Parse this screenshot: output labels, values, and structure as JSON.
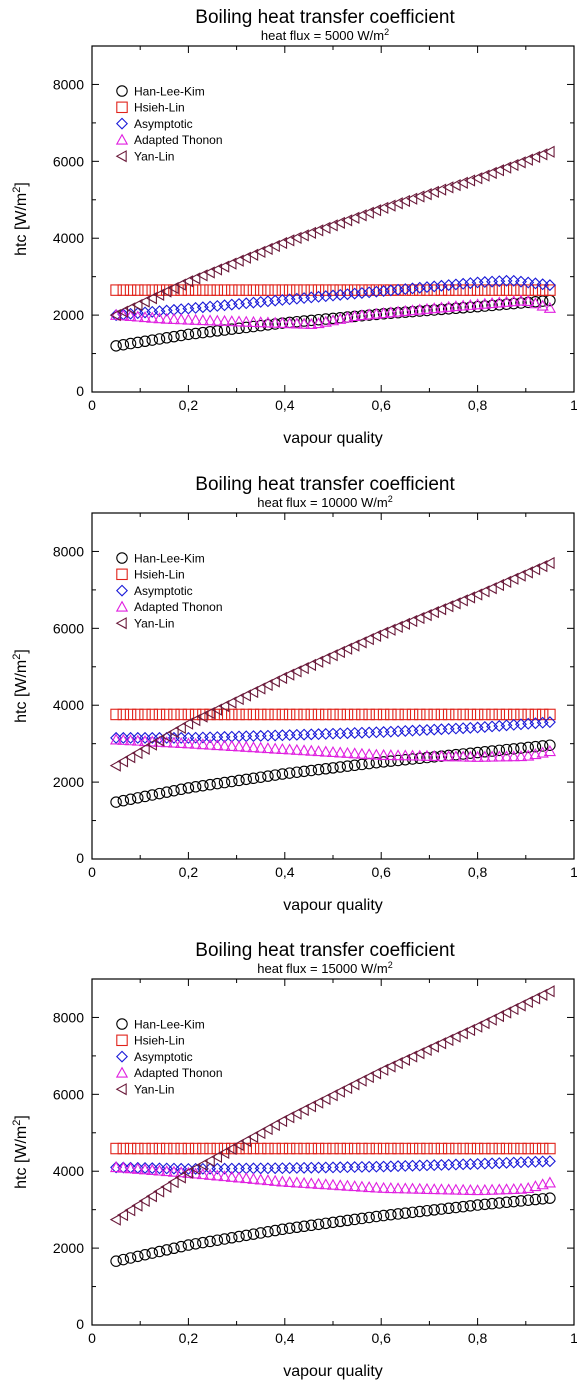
{
  "colors": {
    "Han-Lee-Kim": "#000000",
    "Hsieh-Lin": "#e0221a",
    "Asymptotic": "#1a1ad8",
    "Adapted Thonon": "#e020e0",
    "Yan-Lin": "#6a1a3a"
  },
  "chart_data": [
    {
      "type": "scatter",
      "title": "Boiling heat transfer coefficient",
      "subtitle": "heat flux = 5000 W/m",
      "subtitle_sup": "2",
      "xlabel": "vapour quality",
      "ylabel": "htc [W/m",
      "ylabel_sup": "2",
      "ylabel_end": "]",
      "xlim": [
        0,
        1
      ],
      "ylim": [
        0,
        9000
      ],
      "xticks": [
        "0",
        "0,2",
        "0,4",
        "0,6",
        "0,8",
        "1"
      ],
      "yticks": [
        "0",
        "2000",
        "4000",
        "6000",
        "8000"
      ],
      "legend_position": "top-left",
      "series": [
        {
          "name": "Han-Lee-Kim",
          "marker": "circle",
          "points": [
            [
              0.05,
              1200
            ],
            [
              0.2,
              1500
            ],
            [
              0.4,
              1800
            ],
            [
              0.6,
              2030
            ],
            [
              0.8,
              2220
            ],
            [
              0.95,
              2380
            ]
          ]
        },
        {
          "name": "Hsieh-Lin",
          "marker": "square",
          "points": [
            [
              0.05,
              2650
            ],
            [
              0.95,
              2650
            ]
          ]
        },
        {
          "name": "Asymptotic",
          "marker": "diamond",
          "points": [
            [
              0.05,
              2000
            ],
            [
              0.2,
              2170
            ],
            [
              0.4,
              2400
            ],
            [
              0.6,
              2620
            ],
            [
              0.8,
              2850
            ],
            [
              0.87,
              2900
            ],
            [
              0.95,
              2780
            ]
          ]
        },
        {
          "name": "Adapted Thonon",
          "marker": "triangle-up",
          "points": [
            [
              0.05,
              2000
            ],
            [
              0.15,
              1900
            ],
            [
              0.3,
              1830
            ],
            [
              0.46,
              1760
            ],
            [
              0.55,
              1980
            ],
            [
              0.75,
              2220
            ],
            [
              0.9,
              2380
            ],
            [
              0.95,
              2180
            ]
          ]
        },
        {
          "name": "Yan-Lin",
          "marker": "triangle-left",
          "points": [
            [
              0.05,
              2000
            ],
            [
              0.2,
              2880
            ],
            [
              0.4,
              3900
            ],
            [
              0.6,
              4770
            ],
            [
              0.8,
              5560
            ],
            [
              0.95,
              6250
            ]
          ]
        }
      ]
    },
    {
      "type": "scatter",
      "title": "Boiling heat transfer coefficient",
      "subtitle": "heat flux = 10000 W/m",
      "subtitle_sup": "2",
      "xlabel": "vapour quality",
      "ylabel": "htc [W/m",
      "ylabel_sup": "2",
      "ylabel_end": "]",
      "xlim": [
        0,
        1
      ],
      "ylim": [
        0,
        9000
      ],
      "xticks": [
        "0",
        "0,2",
        "0,4",
        "0,6",
        "0,8",
        "1"
      ],
      "yticks": [
        "0",
        "2000",
        "4000",
        "6000",
        "8000"
      ],
      "legend_position": "top-left",
      "series": [
        {
          "name": "Han-Lee-Kim",
          "marker": "circle",
          "points": [
            [
              0.05,
              1480
            ],
            [
              0.2,
              1850
            ],
            [
              0.4,
              2220
            ],
            [
              0.6,
              2520
            ],
            [
              0.8,
              2770
            ],
            [
              0.95,
              2960
            ]
          ]
        },
        {
          "name": "Hsieh-Lin",
          "marker": "square",
          "points": [
            [
              0.05,
              3760
            ],
            [
              0.95,
              3760
            ]
          ]
        },
        {
          "name": "Asymptotic",
          "marker": "diamond",
          "points": [
            [
              0.05,
              3150
            ],
            [
              0.2,
              3150
            ],
            [
              0.4,
              3220
            ],
            [
              0.6,
              3300
            ],
            [
              0.8,
              3420
            ],
            [
              0.95,
              3560
            ]
          ]
        },
        {
          "name": "Adapted Thonon",
          "marker": "triangle-up",
          "points": [
            [
              0.05,
              3100
            ],
            [
              0.2,
              3000
            ],
            [
              0.4,
              2850
            ],
            [
              0.6,
              2700
            ],
            [
              0.8,
              2650
            ],
            [
              0.9,
              2670
            ],
            [
              0.95,
              2800
            ]
          ]
        },
        {
          "name": "Yan-Lin",
          "marker": "triangle-left",
          "points": [
            [
              0.05,
              2430
            ],
            [
              0.2,
              3520
            ],
            [
              0.4,
              4740
            ],
            [
              0.6,
              5860
            ],
            [
              0.8,
              6880
            ],
            [
              0.95,
              7700
            ]
          ]
        }
      ]
    },
    {
      "type": "scatter",
      "title": "Boiling heat transfer coefficient",
      "subtitle": "heat flux = 15000 W/m",
      "subtitle_sup": "2",
      "xlabel": "vapour quality",
      "ylabel": "htc [W/m",
      "ylabel_sup": "2",
      "ylabel_end": "]",
      "xlim": [
        0,
        1
      ],
      "ylim": [
        0,
        9000
      ],
      "xticks": [
        "0",
        "0,2",
        "0,4",
        "0,6",
        "0,8",
        "1"
      ],
      "yticks": [
        "0",
        "2000",
        "4000",
        "6000",
        "8000"
      ],
      "legend_position": "top-left",
      "series": [
        {
          "name": "Han-Lee-Kim",
          "marker": "circle",
          "points": [
            [
              0.05,
              1660
            ],
            [
              0.2,
              2080
            ],
            [
              0.4,
              2500
            ],
            [
              0.6,
              2840
            ],
            [
              0.8,
              3120
            ],
            [
              0.95,
              3300
            ]
          ]
        },
        {
          "name": "Hsieh-Lin",
          "marker": "square",
          "points": [
            [
              0.05,
              4590
            ],
            [
              0.95,
              4590
            ]
          ]
        },
        {
          "name": "Asymptotic",
          "marker": "diamond",
          "points": [
            [
              0.05,
              4100
            ],
            [
              0.2,
              4060
            ],
            [
              0.4,
              4080
            ],
            [
              0.6,
              4120
            ],
            [
              0.8,
              4190
            ],
            [
              0.95,
              4260
            ]
          ]
        },
        {
          "name": "Adapted Thonon",
          "marker": "triangle-up",
          "points": [
            [
              0.05,
              4100
            ],
            [
              0.2,
              3950
            ],
            [
              0.4,
              3720
            ],
            [
              0.6,
              3560
            ],
            [
              0.8,
              3500
            ],
            [
              0.9,
              3540
            ],
            [
              0.95,
              3700
            ]
          ]
        },
        {
          "name": "Yan-Lin",
          "marker": "triangle-left",
          "points": [
            [
              0.05,
              2740
            ],
            [
              0.2,
              3960
            ],
            [
              0.4,
              5340
            ],
            [
              0.6,
              6610
            ],
            [
              0.8,
              7760
            ],
            [
              0.95,
              8680
            ]
          ]
        }
      ]
    }
  ]
}
